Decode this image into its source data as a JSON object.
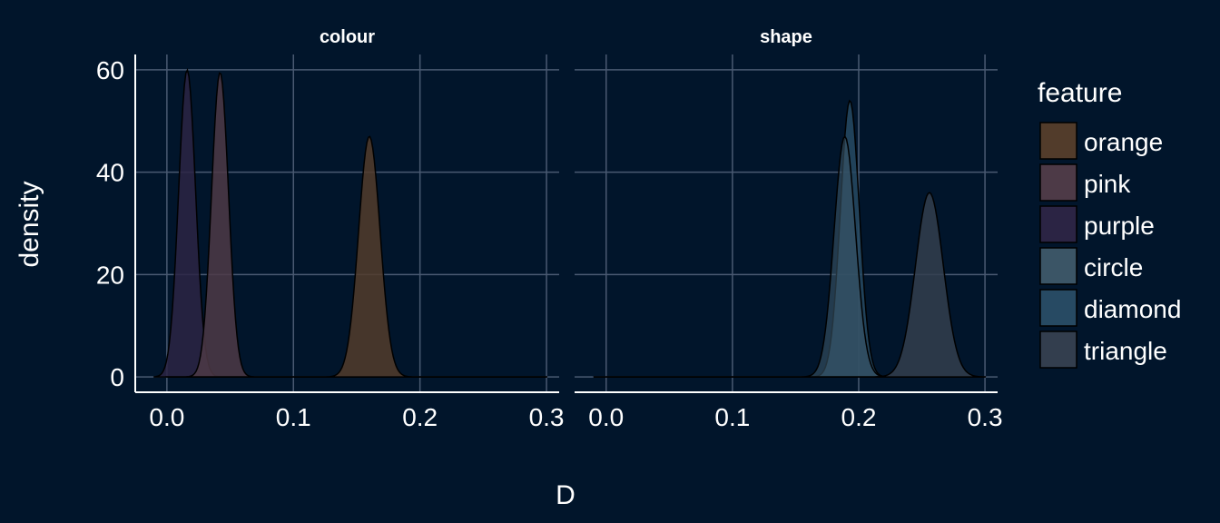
{
  "chart_data": {
    "type": "area",
    "subtype": "density",
    "xlabel": "D",
    "ylabel": "density",
    "xlim": [
      -0.025,
      0.31
    ],
    "ylim": [
      -3,
      63
    ],
    "xticks": [
      0.0,
      0.1,
      0.2,
      0.3
    ],
    "xtick_labels": [
      "0.0",
      "0.1",
      "0.2",
      "0.3"
    ],
    "yticks": [
      0,
      20,
      40,
      60
    ],
    "ytick_labels": [
      "0",
      "20",
      "40",
      "60"
    ],
    "grid": true,
    "legend": {
      "title": "feature",
      "position": "right",
      "entries": [
        {
          "label": "orange",
          "color": "#523c2b"
        },
        {
          "label": "pink",
          "color": "#4d3a47"
        },
        {
          "label": "purple",
          "color": "#2b2444"
        },
        {
          "label": "circle",
          "color": "#3b5566"
        },
        {
          "label": "diamond",
          "color": "#274a63"
        },
        {
          "label": "triangle",
          "color": "#333e4e"
        }
      ]
    },
    "panels": [
      {
        "strip": "colour",
        "series": [
          {
            "name": "purple",
            "color": "#2b2444",
            "opacity": 0.85,
            "mean": 0.016,
            "sd": 0.0067,
            "peak": 60,
            "range": [
              -0.01,
              0.3
            ]
          },
          {
            "name": "pink",
            "color": "#4d3a47",
            "opacity": 0.85,
            "mean": 0.042,
            "sd": 0.0067,
            "peak": 59.5,
            "range": [
              0.0,
              0.3
            ]
          },
          {
            "name": "orange",
            "color": "#523c2b",
            "opacity": 0.85,
            "mean": 0.16,
            "sd": 0.0085,
            "peak": 47,
            "range": [
              0.0,
              0.3
            ]
          }
        ]
      },
      {
        "strip": "shape",
        "series": [
          {
            "name": "diamond",
            "color": "#274a63",
            "opacity": 0.85,
            "mean": 0.193,
            "sd": 0.0075,
            "peak": 54,
            "range": [
              -0.01,
              0.3
            ]
          },
          {
            "name": "circle",
            "color": "#3b5566",
            "opacity": 0.6,
            "mean": 0.189,
            "sd": 0.0085,
            "peak": 47,
            "range": [
              -0.01,
              0.3
            ]
          },
          {
            "name": "triangle",
            "color": "#333e4e",
            "opacity": 0.85,
            "mean": 0.256,
            "sd": 0.011,
            "peak": 36,
            "range": [
              0.0,
              0.3
            ]
          }
        ]
      }
    ]
  }
}
